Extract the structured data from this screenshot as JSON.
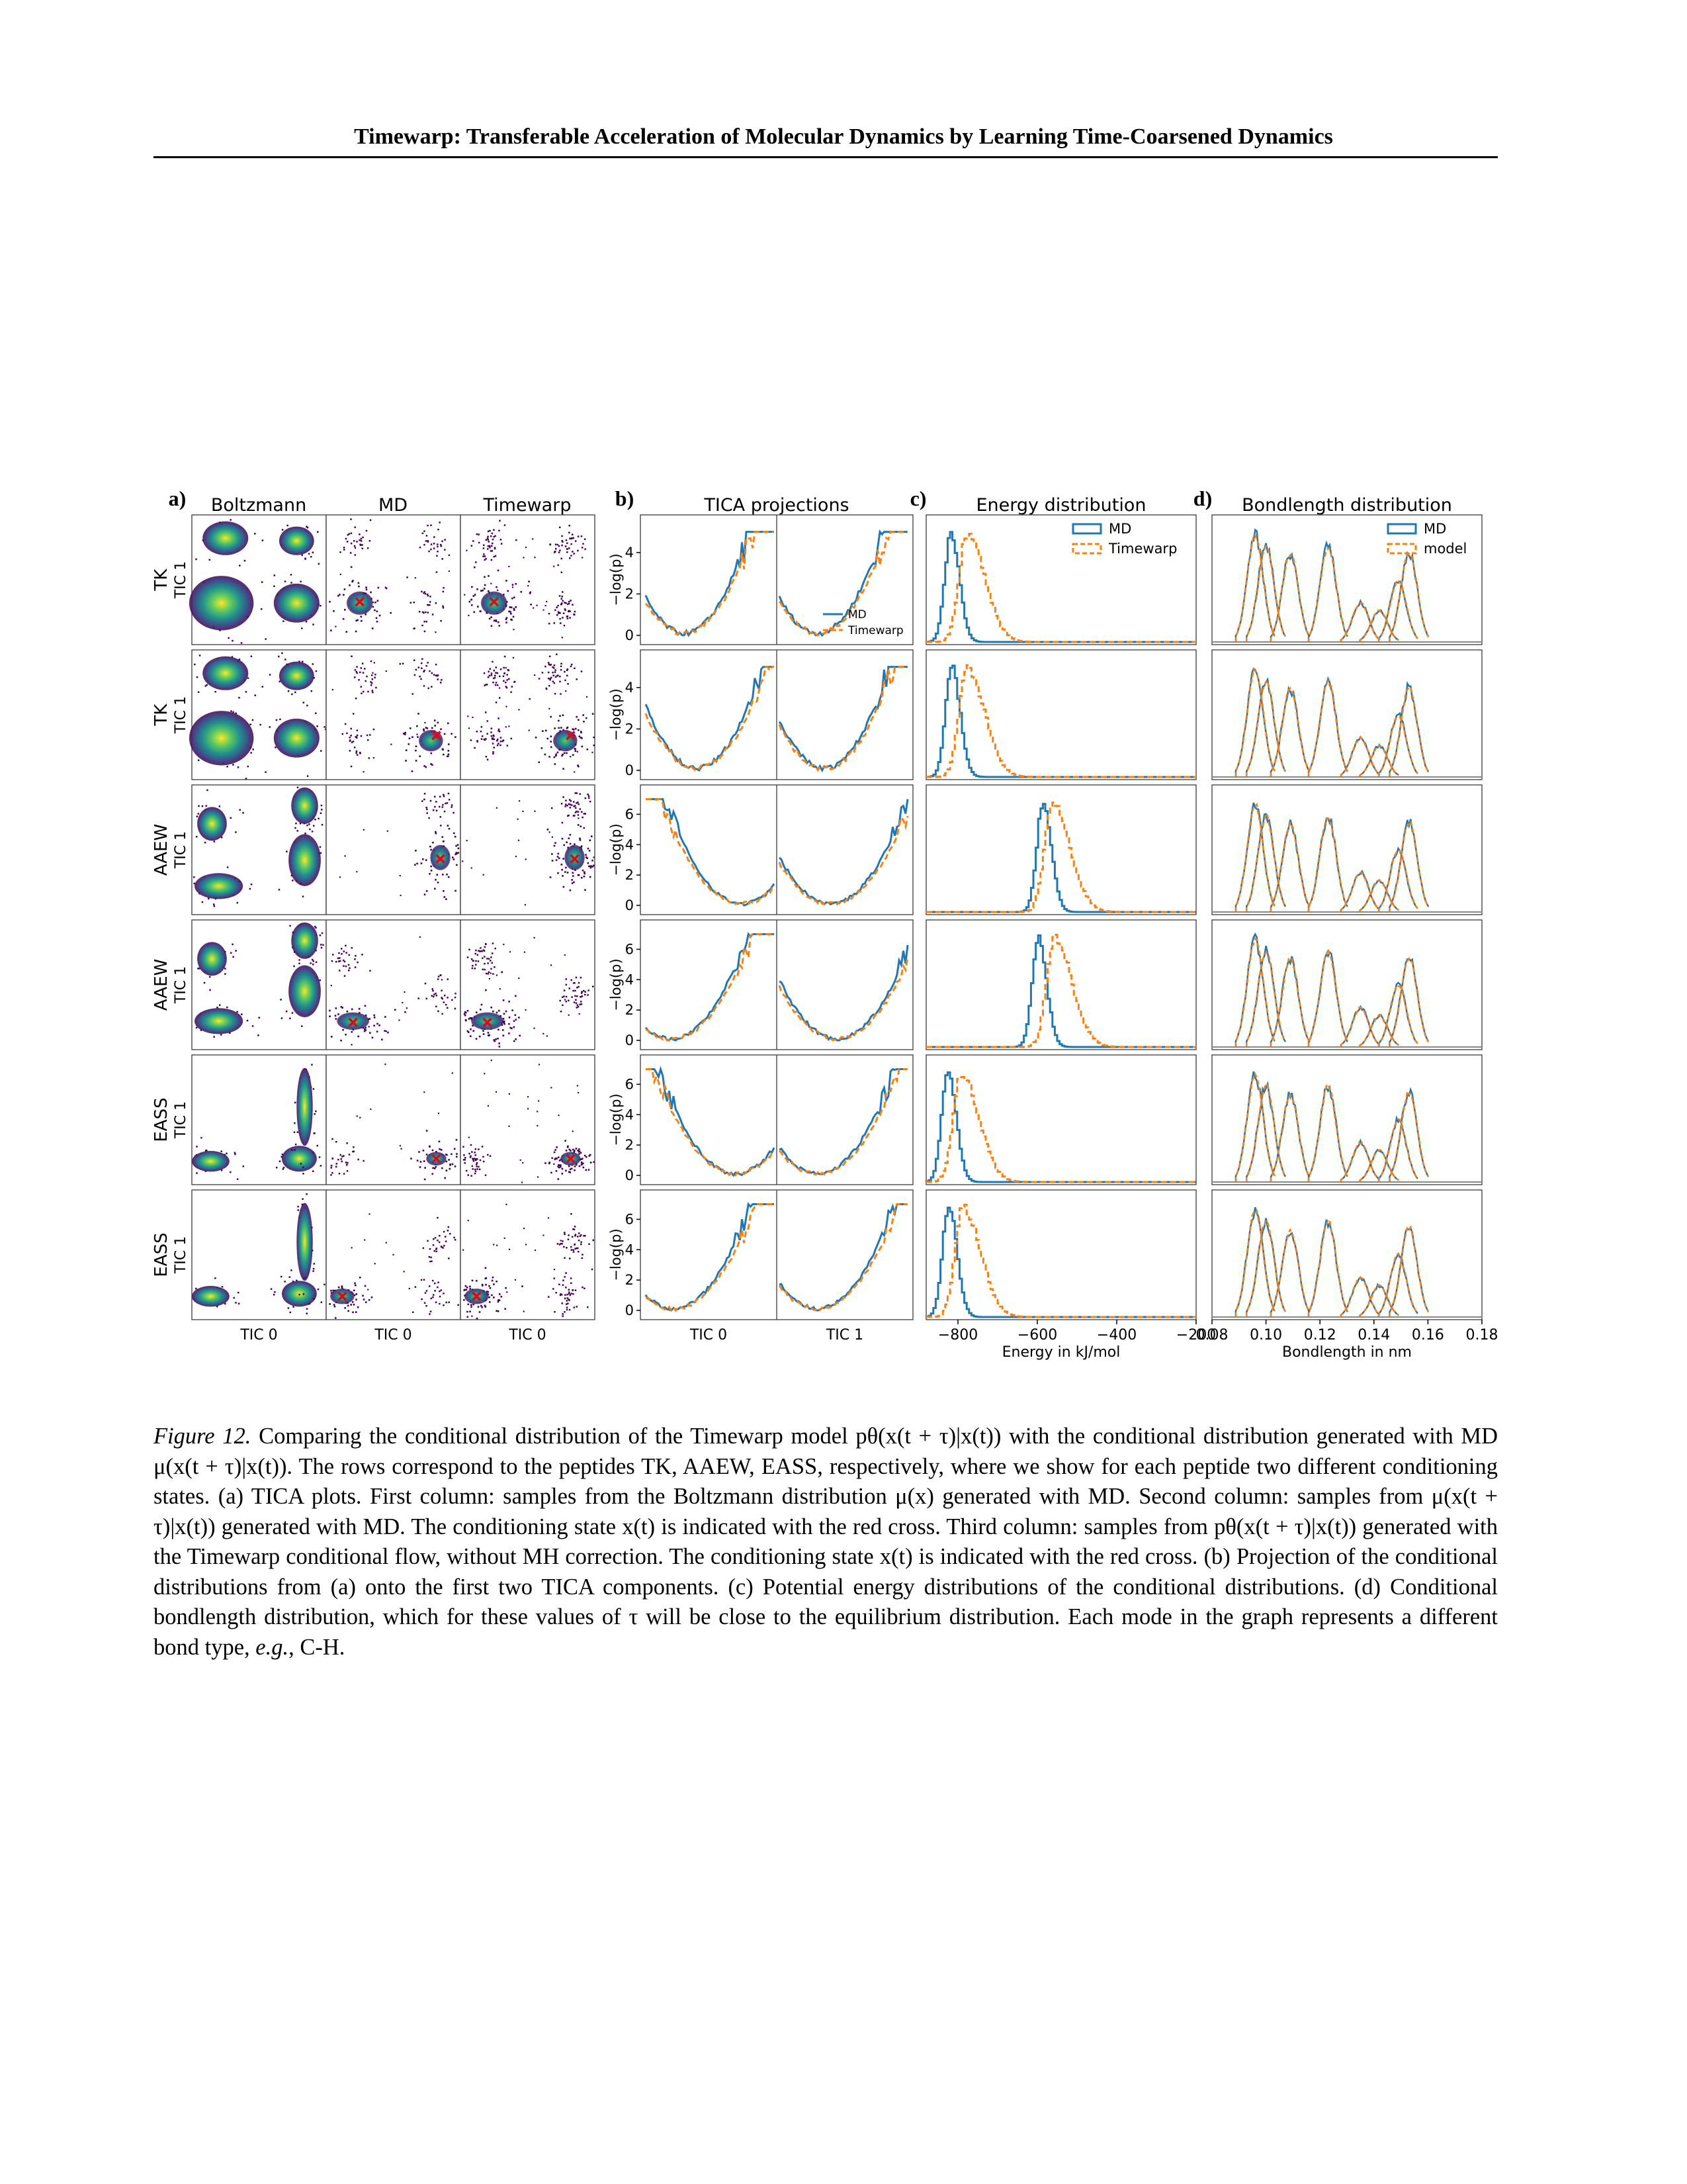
{
  "header": {
    "title": "Timewarp: Transferable Acceleration of Molecular Dynamics by Learning Time-Coarsened Dynamics"
  },
  "figure": {
    "panel_letters": [
      "a)",
      "b)",
      "c)",
      "d)"
    ],
    "col_titles": {
      "boltzmann": "Boltzmann",
      "md": "MD",
      "timewarp": "Timewarp",
      "tica": "TICA projections",
      "energy": "Energy distribution",
      "bond": "Bondlength distribution"
    },
    "row_peptides": [
      "TK",
      "TK",
      "AAEW",
      "AAEW",
      "EASS",
      "EASS"
    ],
    "tic1_label": "TIC 1",
    "tic0_label": "TIC 0",
    "tica_xlabels": [
      "TIC 0",
      "TIC 1"
    ],
    "neglogp_label": "−log(p)",
    "energy_xlabel": "Energy in kJ/mol",
    "bond_xlabel": "Bondlength in nm",
    "colors": {
      "md": "#1f77b4",
      "timewarp": "#ff7f0e",
      "conditioning_cross": "#e8001c"
    }
  },
  "chart_data": [
    {
      "type": "heatmap",
      "title": "TICA plots",
      "columns": [
        "Boltzmann",
        "MD",
        "Timewarp"
      ],
      "rows": [
        "TK",
        "TK",
        "AAEW",
        "AAEW",
        "EASS",
        "EASS"
      ],
      "xlabel": "TIC 0",
      "ylabel": "TIC 1",
      "colormap": "viridis"
    },
    {
      "type": "line",
      "title": "TICA projections",
      "rows": [
        "TK",
        "TK",
        "AAEW",
        "AAEW",
        "EASS",
        "EASS"
      ],
      "subplots": [
        "TIC 0",
        "TIC 1"
      ],
      "ylabel": "−log(p)",
      "series": [
        {
          "name": "MD"
        },
        {
          "name": "Timewarp"
        }
      ],
      "yticks_by_row": [
        [
          0,
          2,
          4
        ],
        [
          0,
          2,
          4
        ],
        [
          0,
          2,
          4,
          6
        ],
        [
          0,
          2,
          4,
          6
        ],
        [
          0,
          2,
          4,
          6
        ],
        [
          0,
          2,
          4,
          6
        ]
      ]
    },
    {
      "type": "line",
      "title": "Energy distribution",
      "rows": [
        "TK",
        "TK",
        "AAEW",
        "AAEW",
        "EASS",
        "EASS"
      ],
      "xlabel": "Energy in kJ/mol",
      "xticks": [
        -800,
        -600,
        -400,
        -200
      ],
      "xlim": [
        -880,
        -200
      ],
      "series": [
        {
          "name": "MD",
          "peaks_by_row": [
            -820,
            -818,
            -588,
            -600,
            -828,
            -826
          ]
        },
        {
          "name": "Timewarp",
          "peaks_by_row": [
            -780,
            -780,
            -565,
            -560,
            -795,
            -790
          ]
        }
      ]
    },
    {
      "type": "line",
      "title": "Bondlength distribution",
      "rows": [
        "TK",
        "TK",
        "AAEW",
        "AAEW",
        "EASS",
        "EASS"
      ],
      "xlabel": "Bondlength in nm",
      "xticks": [
        0.08,
        0.1,
        0.12,
        0.14,
        0.16,
        0.18
      ],
      "xlim": [
        0.08,
        0.18
      ],
      "series": [
        {
          "name": "MD"
        },
        {
          "name": "model"
        }
      ],
      "mode_positions": [
        0.096,
        0.1,
        0.109,
        0.123,
        0.135,
        0.142,
        0.149,
        0.153
      ]
    }
  ],
  "caption": {
    "label": "Figure 12.",
    "text": "Comparing the conditional distribution of the Timewarp model pθ(x(t + τ)|x(t)) with the conditional distribution generated with MD μ(x(t + τ)|x(t)). The rows correspond to the peptides TK, AAEW, EASS, respectively, where we show for each peptide two different conditioning states. (a) TICA plots. First column: samples from the Boltzmann distribution μ(x) generated with MD. Second column: samples from μ(x(t + τ)|x(t)) generated with MD. The conditioning state x(t) is indicated with the red cross. Third column: samples from pθ(x(t + τ)|x(t)) generated with the Timewarp conditional flow, without MH correction. The conditioning state x(t) is indicated with the red cross. (b) Projection of the conditional distributions from (a) onto the first two TICA components. (c) Potential energy distributions of the conditional distributions. (d) Conditional bondlength distribution, which for these values of τ will be close to the equilibrium distribution. Each mode in the graph represents a different bond type, ",
    "eg": "e.g.",
    "tail": ", C-H."
  }
}
